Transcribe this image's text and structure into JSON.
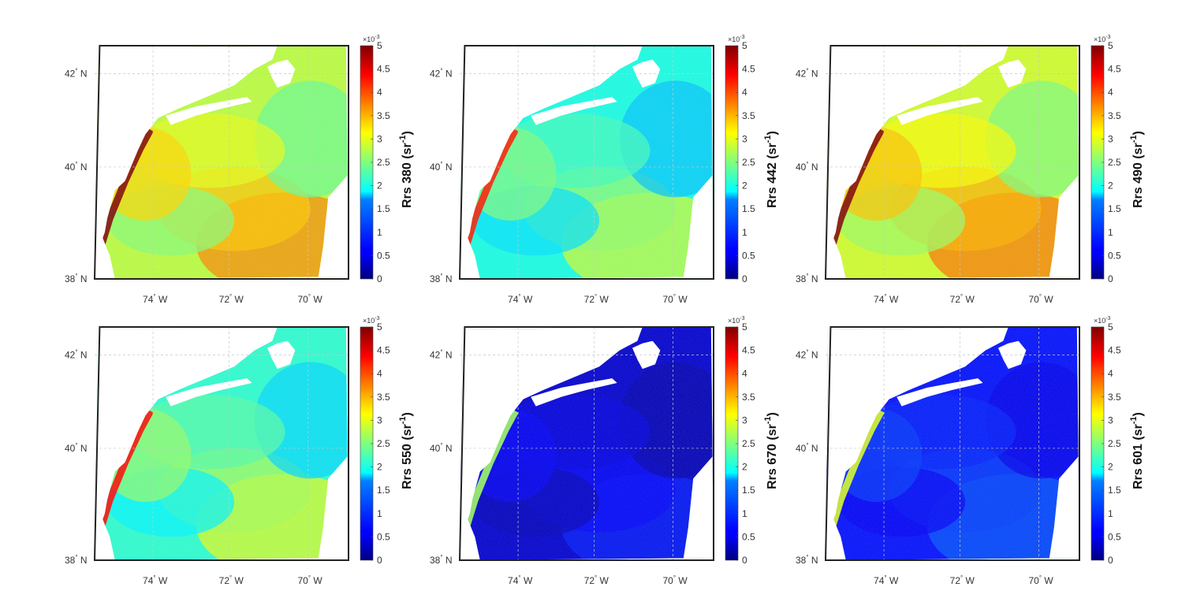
{
  "figure": {
    "panels": [
      {
        "id": "rrs380",
        "band": "380",
        "level": 0.56
      },
      {
        "id": "rrs442",
        "band": "442",
        "level": 0.4
      },
      {
        "id": "rrs490",
        "band": "490",
        "level": 0.58
      },
      {
        "id": "rrs550",
        "band": "550",
        "level": 0.42
      },
      {
        "id": "rrs670",
        "band": "670",
        "level": 0.08
      },
      {
        "id": "rrs601",
        "band": "601",
        "level": 0.14
      }
    ],
    "label_prefix": "Rrs",
    "unit_open": "(sr",
    "unit_exponent": "-1",
    "unit_close": ")",
    "lat_ticks": [
      {
        "deg": "42",
        "hem": "N"
      },
      {
        "deg": "40",
        "hem": "N"
      },
      {
        "deg": "38",
        "hem": "N"
      }
    ],
    "lon_ticks": [
      {
        "deg": "74",
        "hem": "W"
      },
      {
        "deg": "72",
        "hem": "W"
      },
      {
        "deg": "70",
        "hem": "W"
      }
    ],
    "degree_symbol": "°",
    "colorbar": {
      "ticks": [
        "0",
        "0.5",
        "1",
        "1.5",
        "2",
        "2.5",
        "3",
        "3.5",
        "4",
        "4.5",
        "5"
      ],
      "exponent_base": "×10",
      "exponent_power": "-3",
      "colormap": "jet"
    },
    "colors": {
      "land": "#ffffff",
      "frame": "#222222"
    }
  }
}
